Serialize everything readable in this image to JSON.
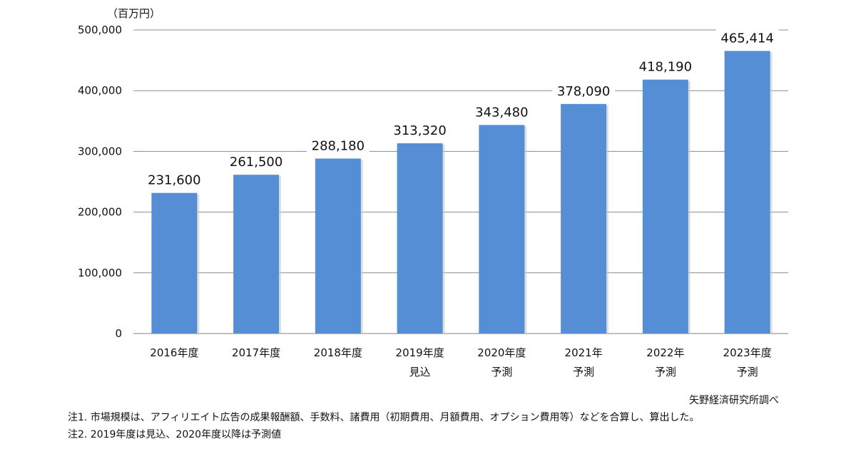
{
  "chart_data": {
    "type": "bar",
    "unit": "（百万円）",
    "categories": [
      [
        "2016年度"
      ],
      [
        "2017年度"
      ],
      [
        "2018年度"
      ],
      [
        "2019年度",
        "見込"
      ],
      [
        "2020年度",
        "予測"
      ],
      [
        "2021年",
        "予測"
      ],
      [
        "2022年",
        "予測"
      ],
      [
        "2023年度",
        "予測"
      ]
    ],
    "values": [
      231600,
      261500,
      288180,
      313320,
      343480,
      378090,
      418190,
      465414
    ],
    "data_labels": [
      "231,600",
      "261,500",
      "288,180",
      "313,320",
      "343,480",
      "378,090",
      "418,190",
      "465,414"
    ],
    "ylim": [
      0,
      500000
    ],
    "yticks": [
      0,
      100000,
      200000,
      300000,
      400000,
      500000
    ],
    "ytick_labels": [
      "0",
      "100,000",
      "200,000",
      "300,000",
      "400,000",
      "500,000"
    ],
    "grid": true,
    "bar_color": "#558ed5"
  },
  "source": "矢野経済研究所調べ",
  "notes": [
    "注1. 市場規模は、アフィリエイト広告の成果報酬額、手数料、諸費用（初期費用、月額費用、オプション費用等）などを合算し、算出した。",
    "注2. 2019年度は見込、2020年度以降は予測値"
  ]
}
